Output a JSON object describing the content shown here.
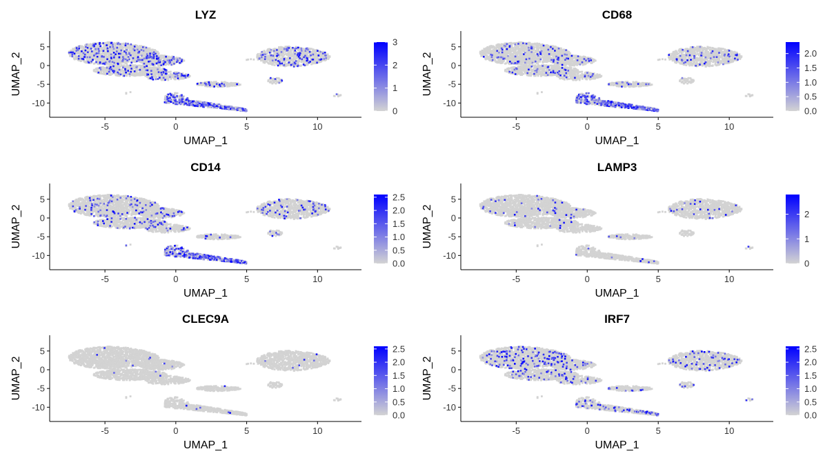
{
  "colors": {
    "low": "#d3d3d3",
    "high": "#0000ff",
    "axis": "#000000"
  },
  "chart_data": [
    {
      "type": "scatter",
      "title": "LYZ",
      "xlabel": "UMAP_1",
      "ylabel": "UMAP_2",
      "xlim": [
        -8.9,
        13.1
      ],
      "ylim": [
        -13.8,
        9.2
      ],
      "xticks": [
        "-5",
        "0",
        "5",
        "10"
      ],
      "yticks": [
        "5",
        "0",
        "-5",
        "-10"
      ],
      "legend": {
        "min": 0,
        "max": 3,
        "ticks": [
          "0",
          "1",
          "2",
          "3"
        ]
      },
      "hotspot": "cluster-c",
      "level": 0.12
    },
    {
      "type": "scatter",
      "title": "CD68",
      "xlabel": "UMAP_1",
      "ylabel": "UMAP_2",
      "xlim": [
        -8.9,
        13.1
      ],
      "ylim": [
        -13.8,
        9.2
      ],
      "xticks": [
        "-5",
        "0",
        "5",
        "10"
      ],
      "yticks": [
        "5",
        "0",
        "-5",
        "-10"
      ],
      "legend": {
        "min": 0,
        "max": 2.4,
        "ticks": [
          "0.0",
          "0.5",
          "1.0",
          "1.5",
          "2.0"
        ]
      },
      "hotspot": "cluster-c",
      "level": 0.05
    },
    {
      "type": "scatter",
      "title": "CD14",
      "xlabel": "UMAP_1",
      "ylabel": "UMAP_2",
      "xlim": [
        -8.9,
        13.1
      ],
      "ylim": [
        -13.8,
        9.2
      ],
      "xticks": [
        "-5",
        "0",
        "5",
        "10"
      ],
      "yticks": [
        "5",
        "0",
        "-5",
        "-10"
      ],
      "legend": {
        "min": 0,
        "max": 2.6,
        "ticks": [
          "0.0",
          "0.5",
          "1.0",
          "1.5",
          "2.0",
          "2.5"
        ]
      },
      "hotspot": "cluster-c",
      "level": 0.06
    },
    {
      "type": "scatter",
      "title": "LAMP3",
      "xlabel": "UMAP_1",
      "ylabel": "UMAP_2",
      "xlim": [
        -8.9,
        13.1
      ],
      "ylim": [
        -13.8,
        9.2
      ],
      "xticks": [
        "-5",
        "0",
        "5",
        "10"
      ],
      "yticks": [
        "5",
        "0",
        "-5",
        "-10"
      ],
      "legend": {
        "min": 0,
        "max": 2.8,
        "ticks": [
          "0",
          "1",
          "2"
        ]
      },
      "hotspot": "none",
      "level": 0.02
    },
    {
      "type": "scatter",
      "title": "CLEC9A",
      "xlabel": "UMAP_1",
      "ylabel": "UMAP_2",
      "xlim": [
        -8.9,
        13.1
      ],
      "ylim": [
        -13.8,
        9.2
      ],
      "xticks": [
        "-5",
        "0",
        "5",
        "10"
      ],
      "yticks": [
        "5",
        "0",
        "-5",
        "-10"
      ],
      "legend": {
        "min": 0,
        "max": 2.6,
        "ticks": [
          "0.0",
          "0.5",
          "1.0",
          "1.5",
          "2.0",
          "2.5"
        ]
      },
      "hotspot": "none",
      "level": 0.005
    },
    {
      "type": "scatter",
      "title": "IRF7",
      "xlabel": "UMAP_1",
      "ylabel": "UMAP_2",
      "xlim": [
        -8.9,
        13.1
      ],
      "ylim": [
        -13.8,
        9.2
      ],
      "xticks": [
        "-5",
        "0",
        "5",
        "10"
      ],
      "yticks": [
        "5",
        "0",
        "-5",
        "-10"
      ],
      "legend": {
        "min": 0,
        "max": 2.6,
        "ticks": [
          "0.0",
          "0.5",
          "1.0",
          "1.5",
          "2.0",
          "2.5"
        ]
      },
      "hotspot": "none",
      "level": 0.07
    }
  ]
}
